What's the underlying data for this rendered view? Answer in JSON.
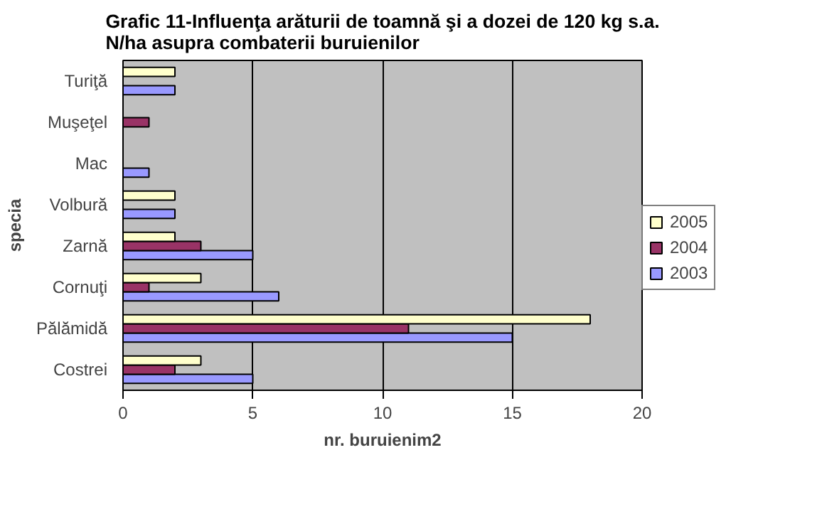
{
  "chart_data": {
    "type": "bar",
    "orientation": "horizontal",
    "title": "Grafic 11-Influenţa arăturii de toamnă şi a dozei de 120 kg s.a. N/ha asupra combaterii buruienilor",
    "xlabel": "nr. buruienim2",
    "ylabel": "specia",
    "categories": [
      "Turiţă",
      "Muşeţel",
      "Mac",
      "Volbură",
      "Zarnă",
      "Cornuţi",
      "Pălămidă",
      "Costrei"
    ],
    "series": [
      {
        "name": "2003",
        "color": "#9999ff",
        "values": [
          2,
          null,
          1,
          2,
          5,
          6,
          15,
          5
        ]
      },
      {
        "name": "2004",
        "color": "#993366",
        "values": [
          null,
          1,
          null,
          null,
          3,
          1,
          11,
          2
        ]
      },
      {
        "name": "2005",
        "color": "#ffffcc",
        "values": [
          2,
          null,
          null,
          2,
          2,
          3,
          18,
          3
        ]
      }
    ],
    "xlim": [
      0,
      20
    ],
    "xticks": [
      0,
      5,
      10,
      15,
      20
    ],
    "grid": "x",
    "legend": "right"
  }
}
